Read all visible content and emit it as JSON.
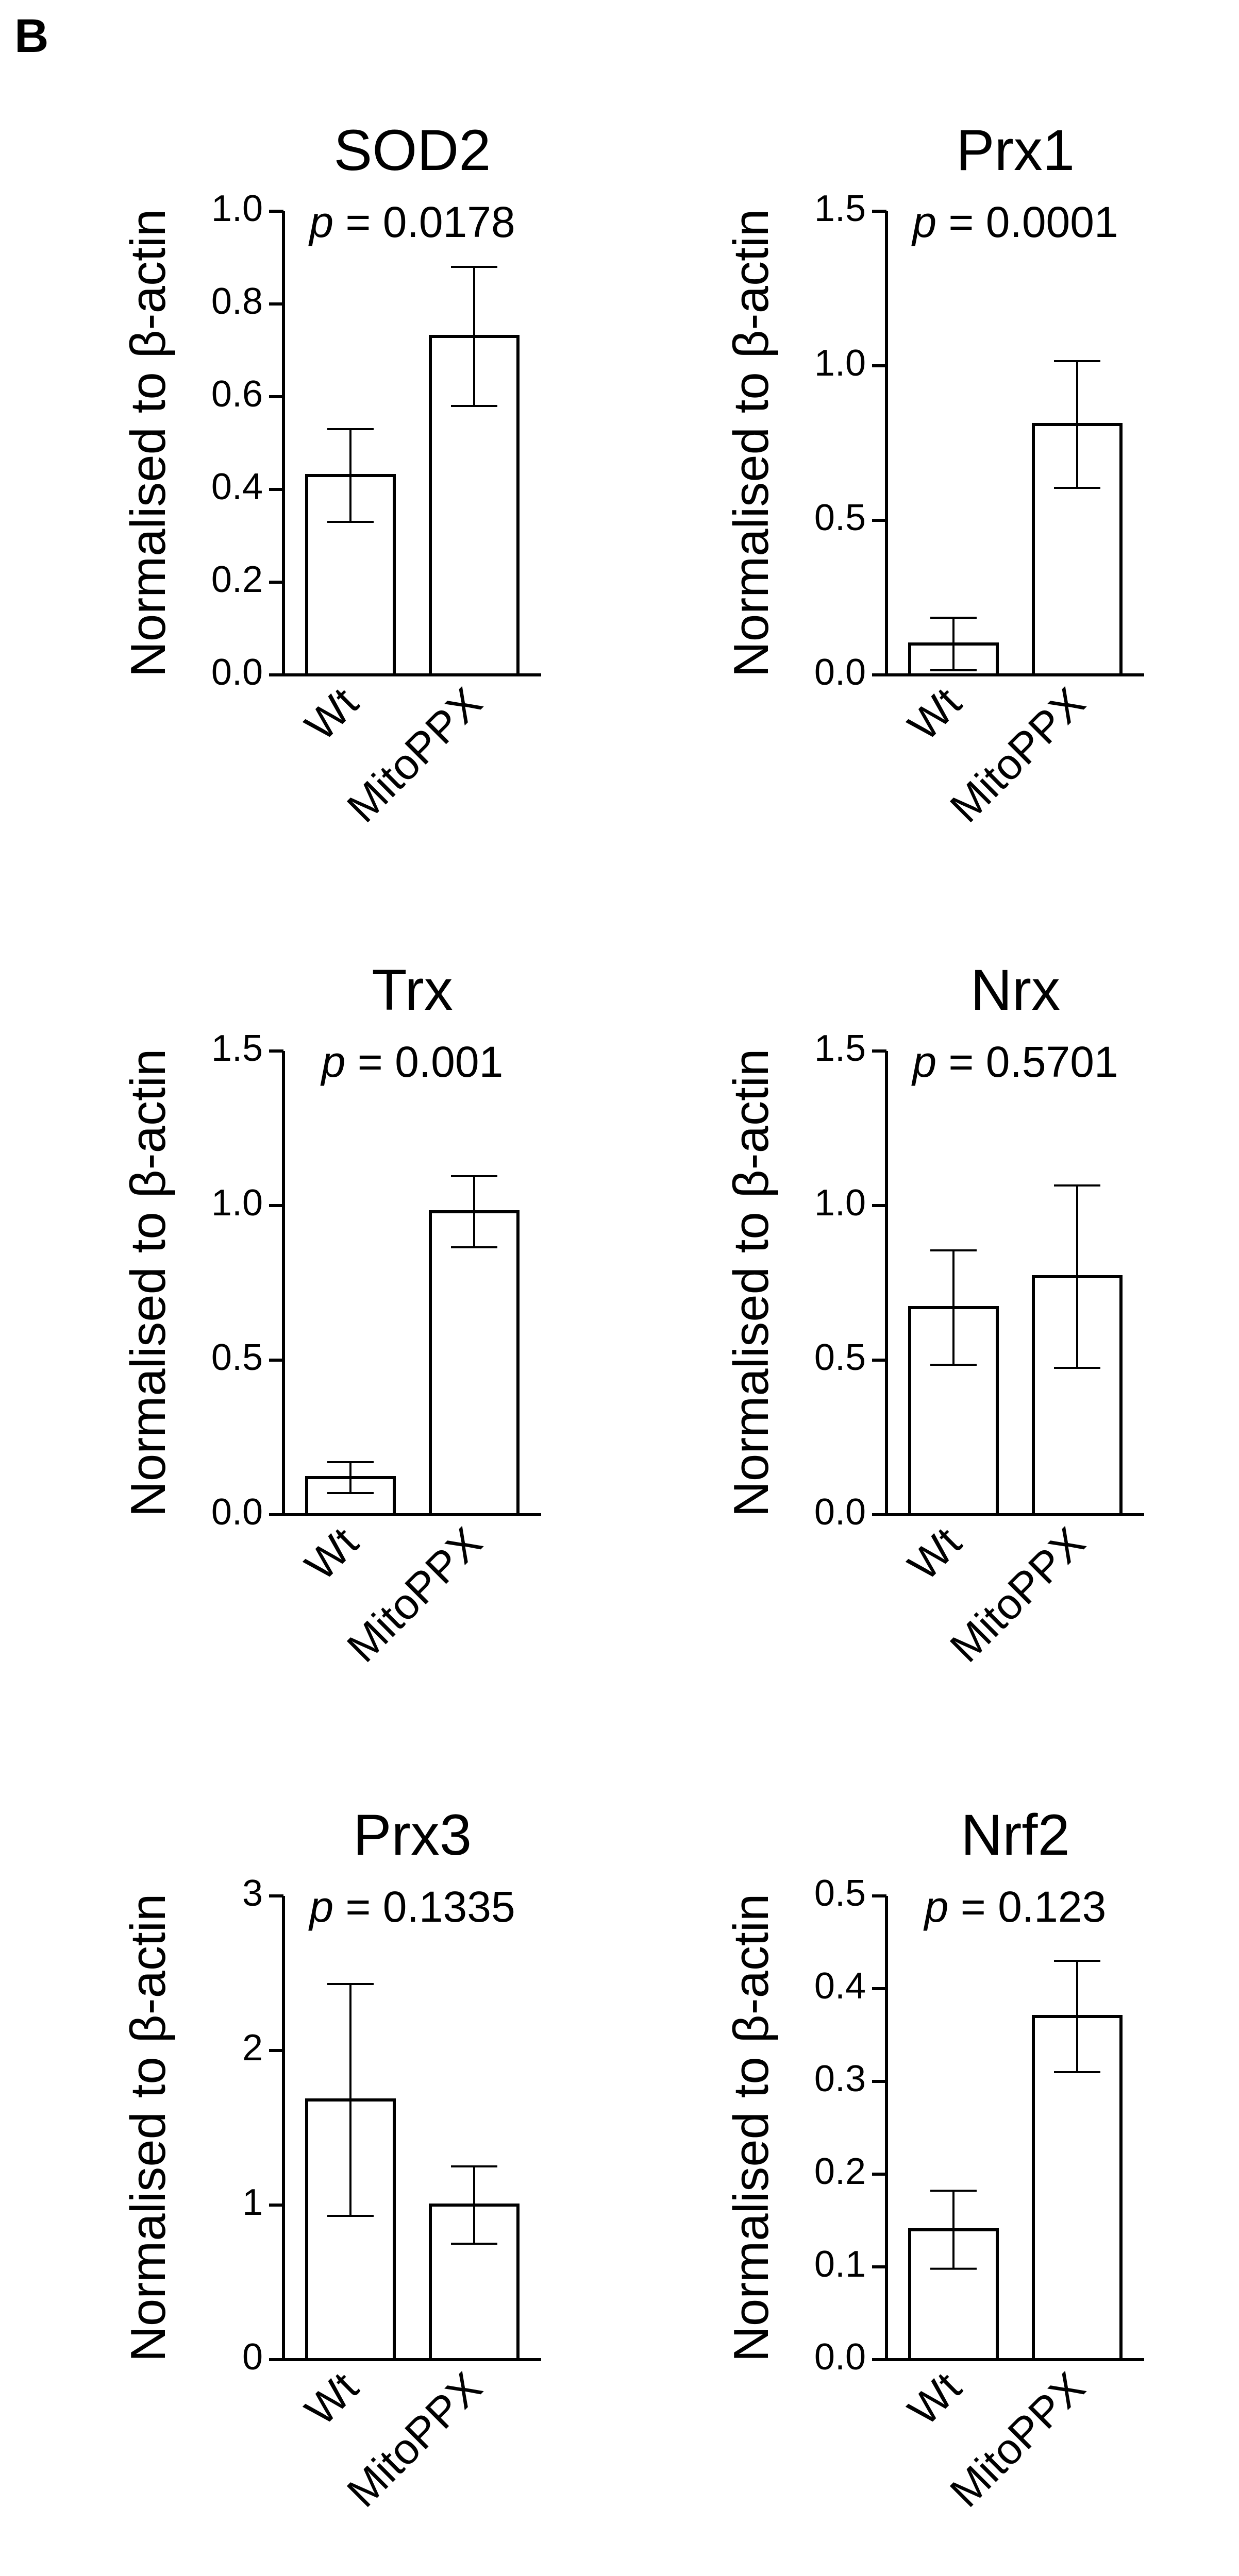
{
  "figure": {
    "panel_label": "B"
  },
  "chart_data": [
    {
      "type": "bar",
      "title": "SOD2",
      "annotation": "p = 0.0178",
      "ylabel": "Normalised to β-actin",
      "categories": [
        "Wt",
        "MitoPPX"
      ],
      "values": [
        0.43,
        0.73
      ],
      "error": [
        0.1,
        0.15
      ],
      "ylim": [
        0,
        1.0
      ],
      "yticks": [
        0.0,
        0.2,
        0.4,
        0.6,
        0.8,
        1.0
      ],
      "ytick_labels": [
        "0.0",
        "0.2",
        "0.4",
        "0.6",
        "0.8",
        "1.0"
      ]
    },
    {
      "type": "bar",
      "title": "Prx1",
      "annotation": "p = 0.0001",
      "ylabel": "Normalised to β-actin",
      "categories": [
        "Wt",
        "MitoPPX"
      ],
      "values": [
        0.1,
        0.81
      ],
      "error": [
        0.085,
        0.205
      ],
      "ylim": [
        0,
        1.5
      ],
      "yticks": [
        0.0,
        0.5,
        1.0,
        1.5
      ],
      "ytick_labels": [
        "0.0",
        "0.5",
        "1.0",
        "1.5"
      ]
    },
    {
      "type": "bar",
      "title": "Trx",
      "annotation": "p = 0.001",
      "ylabel": "Normalised to β-actin",
      "categories": [
        "Wt",
        "MitoPPX"
      ],
      "values": [
        0.12,
        0.98
      ],
      "error": [
        0.05,
        0.115
      ],
      "ylim": [
        0,
        1.5
      ],
      "yticks": [
        0.0,
        0.5,
        1.0,
        1.5
      ],
      "ytick_labels": [
        "0.0",
        "0.5",
        "1.0",
        "1.5"
      ]
    },
    {
      "type": "bar",
      "title": "Nrx",
      "annotation": "p = 0.5701",
      "ylabel": "Normalised to β-actin",
      "categories": [
        "Wt",
        "MitoPPX"
      ],
      "values": [
        0.67,
        0.77
      ],
      "error": [
        0.185,
        0.295
      ],
      "ylim": [
        0,
        1.5
      ],
      "yticks": [
        0.0,
        0.5,
        1.0,
        1.5
      ],
      "ytick_labels": [
        "0.0",
        "0.5",
        "1.0",
        "1.5"
      ]
    },
    {
      "type": "bar",
      "title": "Prx3",
      "annotation": "p = 0.1335",
      "ylabel": "Normalised to β-actin",
      "categories": [
        "Wt",
        "MitoPPX"
      ],
      "values": [
        1.68,
        1.0
      ],
      "error": [
        0.75,
        0.25
      ],
      "ylim": [
        0,
        3
      ],
      "yticks": [
        0,
        1,
        2,
        3
      ],
      "ytick_labels": [
        "0",
        "1",
        "2",
        "3"
      ]
    },
    {
      "type": "bar",
      "title": "Nrf2",
      "annotation": "p = 0.123",
      "ylabel": "Normalised to β-actin",
      "categories": [
        "Wt",
        "MitoPPX"
      ],
      "values": [
        0.14,
        0.37
      ],
      "error": [
        0.042,
        0.06
      ],
      "ylim": [
        0,
        0.5
      ],
      "yticks": [
        0.0,
        0.1,
        0.2,
        0.3,
        0.4,
        0.5
      ],
      "ytick_labels": [
        "0.0",
        "0.1",
        "0.2",
        "0.3",
        "0.4",
        "0.5"
      ]
    }
  ]
}
